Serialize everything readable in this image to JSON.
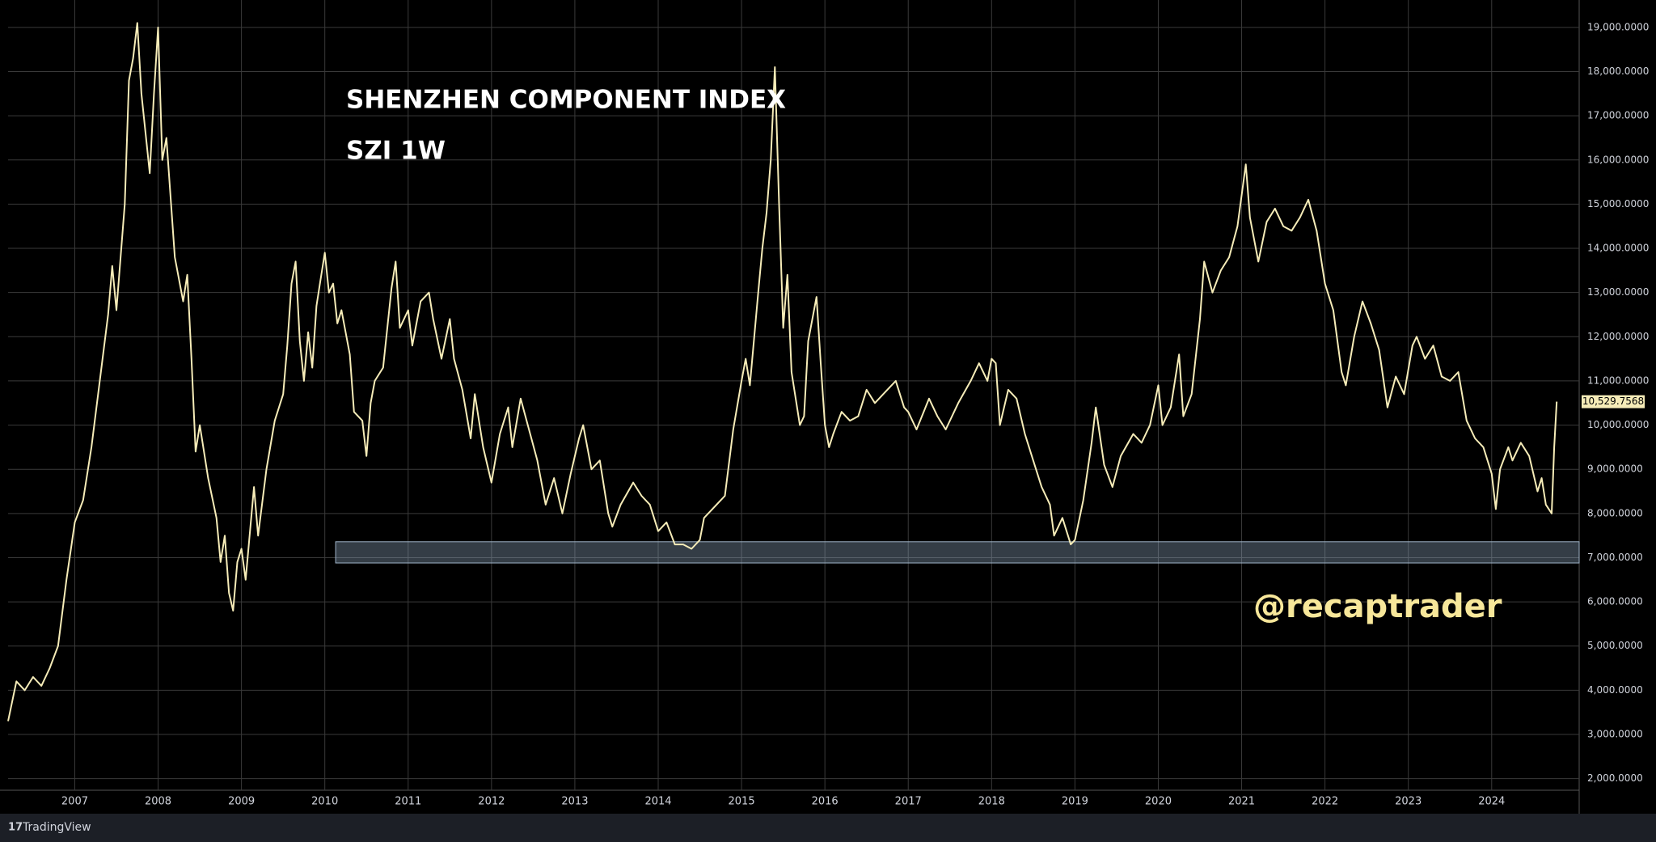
{
  "chart_data": {
    "type": "line",
    "title": "SHENZHEN COMPONENT INDEX",
    "subtitle": "SZI 1W",
    "annotation": "@recaptrader",
    "branding": "TradingView",
    "color": "#f6ecb8",
    "grid": true,
    "xlim": [
      2006.2,
      2025.05
    ],
    "ylim": [
      1737,
      19620
    ],
    "xticks": [
      2007,
      2008,
      2009,
      2010,
      2011,
      2012,
      2013,
      2014,
      2015,
      2016,
      2017,
      2018,
      2019,
      2020,
      2021,
      2022,
      2023,
      2024
    ],
    "yticks": [
      {
        "value": 2000,
        "label": "2,000.0000"
      },
      {
        "value": 3000,
        "label": "3,000.0000"
      },
      {
        "value": 4000,
        "label": "4,000.0000"
      },
      {
        "value": 5000,
        "label": "5,000.0000"
      },
      {
        "value": 6000,
        "label": "6,000.0000"
      },
      {
        "value": 7000,
        "label": "7,000.0000"
      },
      {
        "value": 8000,
        "label": "8,000.0000"
      },
      {
        "value": 9000,
        "label": "9,000.0000"
      },
      {
        "value": 10000,
        "label": "10,000.0000"
      },
      {
        "value": 11000,
        "label": "11,000.0000"
      },
      {
        "value": 12000,
        "label": "12,000.0000"
      },
      {
        "value": 13000,
        "label": "13,000.0000"
      },
      {
        "value": 14000,
        "label": "14,000.0000"
      },
      {
        "value": 15000,
        "label": "15,000.0000"
      },
      {
        "value": 16000,
        "label": "16,000.0000"
      },
      {
        "value": 17000,
        "label": "17,000.0000"
      },
      {
        "value": 18000,
        "label": "18,000.0000"
      },
      {
        "value": 19000,
        "label": "19,000.0000"
      }
    ],
    "last_price": {
      "value": 10529.7568,
      "label": "10,529.7568"
    },
    "band": {
      "x": 2010.13,
      "y": [
        6880,
        7360
      ]
    },
    "x": [
      2006.2,
      2006.3,
      2006.4,
      2006.5,
      2006.6,
      2006.7,
      2006.8,
      2006.9,
      2007.0,
      2007.1,
      2007.2,
      2007.3,
      2007.4,
      2007.45,
      2007.5,
      2007.6,
      2007.65,
      2007.7,
      2007.75,
      2007.8,
      2007.9,
      2007.95,
      2008.0,
      2008.05,
      2008.1,
      2008.2,
      2008.3,
      2008.35,
      2008.4,
      2008.45,
      2008.5,
      2008.6,
      2008.7,
      2008.75,
      2008.8,
      2008.85,
      2008.9,
      2008.95,
      2009.0,
      2009.05,
      2009.15,
      2009.2,
      2009.3,
      2009.4,
      2009.5,
      2009.55,
      2009.6,
      2009.65,
      2009.7,
      2009.75,
      2009.8,
      2009.85,
      2009.9,
      2009.95,
      2010.0,
      2010.05,
      2010.1,
      2010.15,
      2010.2,
      2010.3,
      2010.35,
      2010.45,
      2010.5,
      2010.55,
      2010.6,
      2010.7,
      2010.8,
      2010.85,
      2010.9,
      2011.0,
      2011.05,
      2011.15,
      2011.25,
      2011.3,
      2011.4,
      2011.5,
      2011.55,
      2011.65,
      2011.75,
      2011.8,
      2011.9,
      2012.0,
      2012.1,
      2012.2,
      2012.25,
      2012.35,
      2012.45,
      2012.55,
      2012.65,
      2012.75,
      2012.85,
      2012.95,
      2013.05,
      2013.1,
      2013.2,
      2013.3,
      2013.4,
      2013.45,
      2013.55,
      2013.7,
      2013.8,
      2013.9,
      2014.0,
      2014.1,
      2014.2,
      2014.3,
      2014.4,
      2014.5,
      2014.55,
      2014.65,
      2014.8,
      2014.9,
      2015.0,
      2015.05,
      2015.1,
      2015.2,
      2015.25,
      2015.3,
      2015.35,
      2015.4,
      2015.45,
      2015.5,
      2015.55,
      2015.6,
      2015.7,
      2015.75,
      2015.8,
      2015.9,
      2015.95,
      2016.0,
      2016.05,
      2016.1,
      2016.2,
      2016.3,
      2016.4,
      2016.5,
      2016.6,
      2016.7,
      2016.85,
      2016.95,
      2017.0,
      2017.1,
      2017.25,
      2017.35,
      2017.45,
      2017.6,
      2017.75,
      2017.85,
      2017.95,
      2018.0,
      2018.05,
      2018.1,
      2018.2,
      2018.3,
      2018.4,
      2018.5,
      2018.6,
      2018.7,
      2018.75,
      2018.85,
      2018.95,
      2019.0,
      2019.1,
      2019.2,
      2019.25,
      2019.35,
      2019.45,
      2019.55,
      2019.7,
      2019.8,
      2019.9,
      2020.0,
      2020.05,
      2020.15,
      2020.25,
      2020.3,
      2020.4,
      2020.5,
      2020.55,
      2020.65,
      2020.75,
      2020.85,
      2020.95,
      2021.05,
      2021.1,
      2021.2,
      2021.3,
      2021.4,
      2021.5,
      2021.6,
      2021.7,
      2021.8,
      2021.9,
      2022.0,
      2022.1,
      2022.2,
      2022.25,
      2022.35,
      2022.45,
      2022.55,
      2022.65,
      2022.75,
      2022.85,
      2022.95,
      2023.05,
      2023.1,
      2023.2,
      2023.3,
      2023.4,
      2023.5,
      2023.6,
      2023.7,
      2023.8,
      2023.9,
      2024.0,
      2024.05,
      2024.1,
      2024.2,
      2024.25,
      2024.35,
      2024.45,
      2024.55,
      2024.6,
      2024.65,
      2024.72,
      2024.75,
      2024.78
    ],
    "values": [
      3300,
      4200,
      4000,
      4300,
      4100,
      4500,
      5000,
      6500,
      7800,
      8300,
      9500,
      11000,
      12500,
      13600,
      12600,
      15000,
      17800,
      18300,
      19100,
      17500,
      15700,
      17500,
      19000,
      16000,
      16500,
      13800,
      12800,
      13400,
      11500,
      9400,
      10000,
      8800,
      7900,
      6900,
      7500,
      6200,
      5800,
      6900,
      7200,
      6500,
      8600,
      7500,
      9000,
      10100,
      10700,
      11800,
      13200,
      13700,
      11900,
      11000,
      12100,
      11300,
      12700,
      13300,
      13900,
      13000,
      13200,
      12300,
      12600,
      11600,
      10300,
      10100,
      9300,
      10500,
      11000,
      11300,
      13100,
      13700,
      12200,
      12600,
      11800,
      12800,
      13000,
      12400,
      11500,
      12400,
      11500,
      10800,
      9700,
      10700,
      9500,
      8700,
      9800,
      10400,
      9500,
      10600,
      9900,
      9200,
      8200,
      8800,
      8000,
      8900,
      9700,
      10000,
      9000,
      9200,
      8000,
      7700,
      8200,
      8700,
      8400,
      8200,
      7600,
      7800,
      7300,
      7300,
      7200,
      7400,
      7900,
      8100,
      8400,
      9900,
      11000,
      11500,
      10900,
      13000,
      14000,
      14800,
      16000,
      18100,
      15000,
      12200,
      13400,
      11200,
      10000,
      10200,
      11900,
      12900,
      11400,
      10000,
      9500,
      9800,
      10300,
      10100,
      10200,
      10800,
      10500,
      10700,
      11000,
      10400,
      10300,
      9900,
      10600,
      10200,
      9900,
      10500,
      11000,
      11400,
      11000,
      11500,
      11400,
      10000,
      10800,
      10600,
      9800,
      9200,
      8600,
      8200,
      7500,
      7900,
      7300,
      7400,
      8300,
      9600,
      10400,
      9100,
      8600,
      9300,
      9800,
      9600,
      10000,
      10900,
      10000,
      10400,
      11600,
      10200,
      10700,
      12400,
      13700,
      13000,
      13500,
      13800,
      14500,
      15900,
      14700,
      13700,
      14600,
      14900,
      14500,
      14400,
      14700,
      15100,
      14400,
      13200,
      12600,
      11200,
      10900,
      12000,
      12800,
      12300,
      11700,
      10400,
      11100,
      10700,
      11800,
      12000,
      11500,
      11800,
      11100,
      11000,
      11200,
      10100,
      9700,
      9500,
      8900,
      8100,
      9000,
      9500,
      9200,
      9600,
      9300,
      8500,
      8800,
      8200,
      8000,
      9500,
      10530
    ]
  }
}
